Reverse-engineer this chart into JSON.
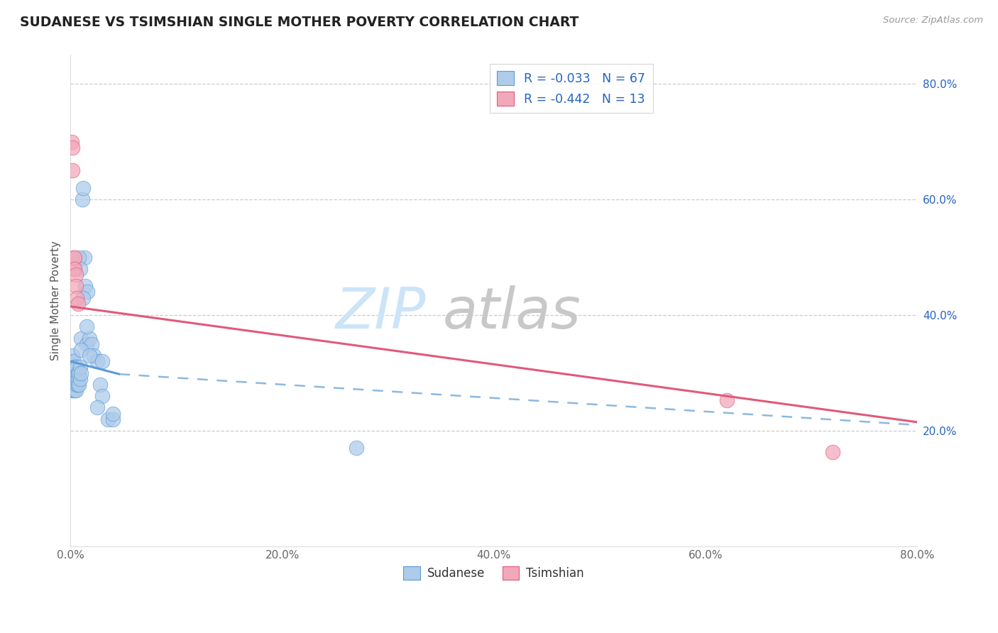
{
  "title": "SUDANESE VS TSIMSHIAN SINGLE MOTHER POVERTY CORRELATION CHART",
  "source": "Source: ZipAtlas.com",
  "ylabel": "Single Mother Poverty",
  "xlim": [
    0.0,
    0.8
  ],
  "ylim": [
    0.0,
    0.85
  ],
  "xticks": [
    0.0,
    0.2,
    0.4,
    0.6,
    0.8
  ],
  "yticks": [
    0.2,
    0.4,
    0.6,
    0.8
  ],
  "xtick_labels": [
    "0.0%",
    "20.0%",
    "40.0%",
    "60.0%",
    "80.0%"
  ],
  "right_ytick_labels": [
    "20.0%",
    "40.0%",
    "60.0%",
    "80.0%"
  ],
  "sudanese_R": -0.033,
  "sudanese_N": 67,
  "tsimshian_R": -0.442,
  "tsimshian_N": 13,
  "sudanese_color": "#aecbea",
  "tsimshian_color": "#f2a8bb",
  "sudanese_line_color": "#5b9bd5",
  "tsimshian_line_color": "#e05a7a",
  "background_color": "#ffffff",
  "sudanese_x": [
    0.001,
    0.001,
    0.001,
    0.001,
    0.001,
    0.002,
    0.002,
    0.002,
    0.002,
    0.002,
    0.002,
    0.002,
    0.003,
    0.003,
    0.003,
    0.003,
    0.003,
    0.003,
    0.003,
    0.004,
    0.004,
    0.004,
    0.004,
    0.004,
    0.004,
    0.005,
    0.005,
    0.005,
    0.005,
    0.005,
    0.006,
    0.006,
    0.006,
    0.006,
    0.007,
    0.007,
    0.007,
    0.008,
    0.008,
    0.009,
    0.009,
    0.01,
    0.01,
    0.011,
    0.012,
    0.013,
    0.014,
    0.015,
    0.016,
    0.018,
    0.02,
    0.022,
    0.025,
    0.028,
    0.03,
    0.035,
    0.04,
    0.008,
    0.009,
    0.01,
    0.012,
    0.015,
    0.018,
    0.025,
    0.03,
    0.04,
    0.27
  ],
  "sudanese_y": [
    0.3,
    0.31,
    0.29,
    0.28,
    0.32,
    0.3,
    0.29,
    0.31,
    0.28,
    0.3,
    0.27,
    0.33,
    0.29,
    0.3,
    0.28,
    0.31,
    0.27,
    0.32,
    0.3,
    0.29,
    0.3,
    0.28,
    0.31,
    0.27,
    0.29,
    0.28,
    0.3,
    0.29,
    0.31,
    0.27,
    0.29,
    0.3,
    0.28,
    0.31,
    0.3,
    0.28,
    0.29,
    0.28,
    0.3,
    0.29,
    0.31,
    0.36,
    0.3,
    0.6,
    0.62,
    0.5,
    0.45,
    0.35,
    0.44,
    0.36,
    0.35,
    0.33,
    0.32,
    0.28,
    0.26,
    0.22,
    0.22,
    0.5,
    0.48,
    0.34,
    0.43,
    0.38,
    0.33,
    0.24,
    0.32,
    0.23,
    0.17
  ],
  "tsimshian_x": [
    0.001,
    0.002,
    0.002,
    0.003,
    0.003,
    0.004,
    0.004,
    0.005,
    0.005,
    0.006,
    0.007,
    0.62,
    0.72
  ],
  "tsimshian_y": [
    0.7,
    0.69,
    0.65,
    0.5,
    0.48,
    0.5,
    0.48,
    0.47,
    0.45,
    0.43,
    0.42,
    0.253,
    0.163
  ],
  "blue_line_x": [
    0.0,
    0.046
  ],
  "blue_line_y": [
    0.32,
    0.298
  ],
  "dashed_line_x": [
    0.046,
    0.8
  ],
  "dashed_line_y": [
    0.298,
    0.21
  ],
  "pink_line_x": [
    0.0,
    0.8
  ],
  "pink_line_y": [
    0.415,
    0.215
  ],
  "watermark_zip_color": "#cce4f7",
  "watermark_atlas_color": "#c8c8c8",
  "legend_label_color": "#2563c4"
}
